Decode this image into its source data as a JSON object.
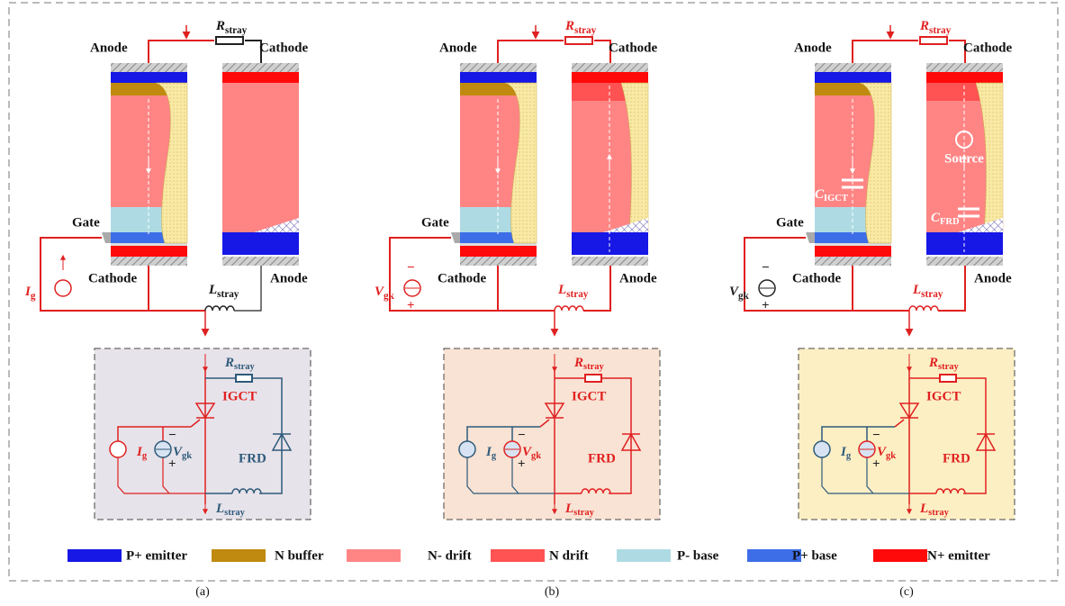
{
  "panels": [
    {
      "caption": "(a)",
      "anode_top": "Anode",
      "cathode_top": "Cathode",
      "gate": "Gate",
      "cathode_bottom": "Cathode",
      "anode_bottom": "Anode",
      "r_stray": {
        "symbol": "R",
        "sub": "stray"
      },
      "l_stray": {
        "symbol": "L",
        "sub": "stray"
      },
      "source": {
        "symbol": "I",
        "sub": "g"
      },
      "inset": {
        "r_stray": {
          "symbol": "R",
          "sub": "stray"
        },
        "igct": "IGCT",
        "i_g": {
          "symbol": "I",
          "sub": "g"
        },
        "v_gk": {
          "symbol": "V",
          "sub": "gk"
        },
        "v_signs": [
          "−",
          "+"
        ],
        "frd": "FRD",
        "l_stray": {
          "symbol": "L",
          "sub": "stray"
        }
      }
    },
    {
      "caption": "(b)",
      "anode_top": "Anode",
      "cathode_top": "Cathode",
      "gate": "Gate",
      "cathode_bottom": "Cathode",
      "anode_bottom": "Anode",
      "r_stray": {
        "symbol": "R",
        "sub": "stray"
      },
      "l_stray": {
        "symbol": "L",
        "sub": "stray"
      },
      "source": {
        "symbol": "V",
        "sub": "gk",
        "signs": [
          "−",
          "+"
        ]
      },
      "inset": {
        "r_stray": {
          "symbol": "R",
          "sub": "stray"
        },
        "igct": "IGCT",
        "i_g": {
          "symbol": "I",
          "sub": "g"
        },
        "v_gk": {
          "symbol": "V",
          "sub": "gk"
        },
        "v_signs": [
          "−",
          "+"
        ],
        "frd": "FRD",
        "l_stray": {
          "symbol": "L",
          "sub": "stray"
        }
      }
    },
    {
      "caption": "(c)",
      "anode_top": "Anode",
      "cathode_top": "Cathode",
      "gate": "Gate",
      "cathode_bottom": "Cathode",
      "anode_bottom": "Anode",
      "r_stray": {
        "symbol": "R",
        "sub": "stray"
      },
      "l_stray": {
        "symbol": "L",
        "sub": "stray"
      },
      "source": {
        "symbol": "V",
        "sub": "gk",
        "signs": [
          "−",
          "+"
        ]
      },
      "source_label": "Source",
      "c_igct": {
        "symbol": "C",
        "sub": "IGCT"
      },
      "c_frd": {
        "symbol": "C",
        "sub": "FRD"
      },
      "inset": {
        "r_stray": {
          "symbol": "R",
          "sub": "stray"
        },
        "igct": "IGCT",
        "i_g": {
          "symbol": "I",
          "sub": "g"
        },
        "v_gk": {
          "symbol": "V",
          "sub": "gk"
        },
        "v_signs": [
          "−",
          "+"
        ],
        "frd": "FRD",
        "l_stray": {
          "symbol": "L",
          "sub": "stray"
        }
      }
    }
  ],
  "legend": [
    {
      "label": "P+ emitter",
      "color": "#1717e6"
    },
    {
      "label": "N buffer",
      "color": "#bf8a0f"
    },
    {
      "label": "N- drift",
      "color": "#ff8585"
    },
    {
      "label": "N drift",
      "color": "#ff5252"
    },
    {
      "label": "P- base",
      "color": "#aedbe3"
    },
    {
      "label": "P+ base",
      "color": "#3d6ee8"
    },
    {
      "label": "N+ emitter",
      "color": "#ff0a0a"
    }
  ]
}
